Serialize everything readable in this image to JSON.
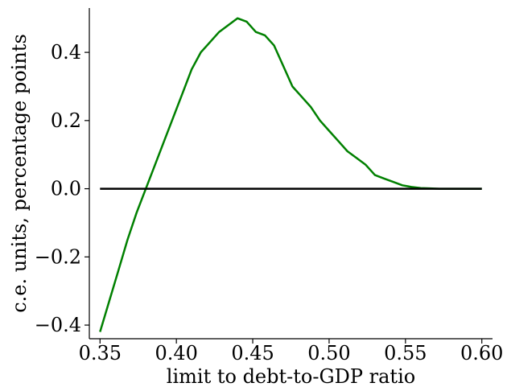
{
  "chart_data": {
    "type": "line",
    "xlabel": "limit to debt-to-GDP ratio",
    "ylabel": "c.e. units, percentage points",
    "xlim": [
      0.343,
      0.607
    ],
    "ylim": [
      -0.44,
      0.53
    ],
    "x_ticks": [
      0.35,
      0.4,
      0.45,
      0.5,
      0.55,
      0.6
    ],
    "x_tick_labels": [
      "0.35",
      "0.40",
      "0.45",
      "0.50",
      "0.55",
      "0.60"
    ],
    "y_ticks": [
      -0.4,
      -0.2,
      0.0,
      0.2,
      0.4
    ],
    "y_tick_labels": [
      "−0.4",
      "−0.2",
      "0.0",
      "0.2",
      "0.4"
    ],
    "grid": false,
    "series": [
      {
        "color": "#008000",
        "x": [
          0.35,
          0.356,
          0.362,
          0.368,
          0.374,
          0.38,
          0.386,
          0.392,
          0.398,
          0.404,
          0.41,
          0.416,
          0.422,
          0.428,
          0.434,
          0.44,
          0.446,
          0.452,
          0.458,
          0.464,
          0.47,
          0.476,
          0.482,
          0.488,
          0.494,
          0.5,
          0.506,
          0.512,
          0.518,
          0.524,
          0.53,
          0.536,
          0.542,
          0.548,
          0.554,
          0.56,
          0.566,
          0.572,
          0.578,
          0.584,
          0.59,
          0.596,
          0.6
        ],
        "y": [
          -0.42,
          -0.33,
          -0.24,
          -0.15,
          -0.07,
          0.0,
          0.07,
          0.14,
          0.21,
          0.28,
          0.35,
          0.4,
          0.43,
          0.46,
          0.48,
          0.5,
          0.49,
          0.46,
          0.45,
          0.42,
          0.36,
          0.3,
          0.27,
          0.24,
          0.2,
          0.17,
          0.14,
          0.11,
          0.09,
          0.07,
          0.04,
          0.03,
          0.02,
          0.01,
          0.005,
          0.002,
          0.001,
          0.0,
          0.0,
          0.0,
          0.0,
          0.0,
          0.0
        ]
      },
      {
        "color": "#000000",
        "x": [
          0.35,
          0.6
        ],
        "y": [
          0.0,
          0.0
        ]
      }
    ]
  }
}
